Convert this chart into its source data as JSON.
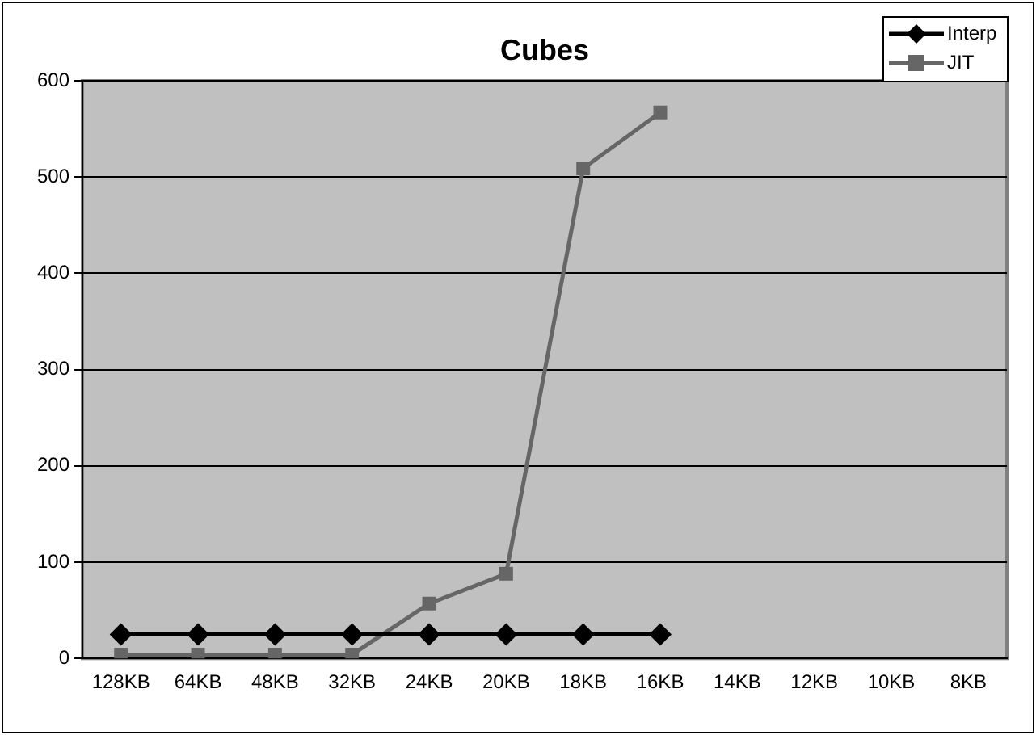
{
  "chart_data": {
    "type": "line",
    "title": "Cubes",
    "categories": [
      "128KB",
      "64KB",
      "48KB",
      "32KB",
      "24KB",
      "20KB",
      "18KB",
      "16KB",
      "14KB",
      "12KB",
      "10KB",
      "8KB"
    ],
    "series": [
      {
        "name": "Interp",
        "color": "#000000",
        "marker": "diamond",
        "values": [
          25,
          25,
          25,
          25,
          25,
          25,
          25,
          25,
          null,
          null,
          null,
          null
        ]
      },
      {
        "name": "JIT",
        "color": "#666666",
        "marker": "square",
        "values": [
          4,
          4,
          4,
          4,
          57,
          88,
          509,
          567,
          null,
          null,
          null,
          null
        ]
      }
    ],
    "ylim": [
      0,
      600
    ],
    "yticks": [
      0,
      100,
      200,
      300,
      400,
      500,
      600
    ],
    "grid": "y",
    "legend": "top right"
  }
}
